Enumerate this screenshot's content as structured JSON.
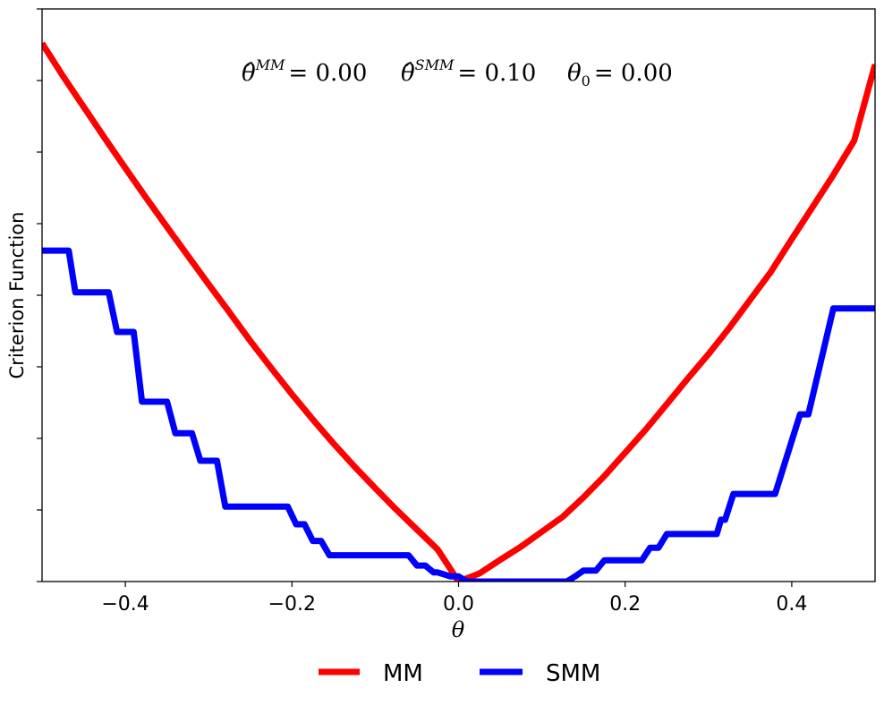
{
  "chart_data": {
    "type": "line",
    "title": "",
    "xlabel": "θ",
    "ylabel": "Criterion Function",
    "xlim": [
      -0.5,
      0.5
    ],
    "ylim": [
      0,
      1
    ],
    "x_ticks": [
      "−0.4",
      "−0.2",
      "0.0",
      "0.2",
      "0.4"
    ],
    "x_tick_values": [
      -0.4,
      -0.2,
      0.0,
      0.2,
      0.4
    ],
    "y_tick_values": [
      0,
      0.125,
      0.25,
      0.375,
      0.5,
      0.625,
      0.75,
      0.875,
      1.0
    ],
    "y_tick_labels_shown": false,
    "grid": false,
    "legend_placement": "bottom-center",
    "annotations": [
      {
        "symbol": "θ̂",
        "sup": "MM",
        "text": "= 0.00"
      },
      {
        "symbol": "θ̂",
        "sup": "SMM",
        "text": "= 0.10"
      },
      {
        "symbol": "θ",
        "sub": "0",
        "text": "= 0.00"
      }
    ],
    "series": [
      {
        "name": "MM",
        "color": "#ff0000",
        "x": [
          -0.5,
          -0.475,
          -0.45,
          -0.425,
          -0.4,
          -0.375,
          -0.35,
          -0.325,
          -0.3,
          -0.275,
          -0.25,
          -0.225,
          -0.2,
          -0.175,
          -0.15,
          -0.125,
          -0.1,
          -0.075,
          -0.05,
          -0.025,
          0.0,
          0.025,
          0.05,
          0.075,
          0.1,
          0.125,
          0.15,
          0.175,
          0.2,
          0.225,
          0.25,
          0.275,
          0.3,
          0.325,
          0.35,
          0.375,
          0.4,
          0.425,
          0.45,
          0.475,
          0.5
        ],
        "y": [
          0.94,
          0.883,
          0.829,
          0.775,
          0.722,
          0.67,
          0.619,
          0.569,
          0.519,
          0.47,
          0.42,
          0.373,
          0.327,
          0.283,
          0.241,
          0.201,
          0.163,
          0.126,
          0.091,
          0.056,
          0.0,
          0.014,
          0.038,
          0.061,
          0.087,
          0.113,
          0.147,
          0.184,
          0.225,
          0.266,
          0.31,
          0.354,
          0.397,
          0.443,
          0.492,
          0.541,
          0.598,
          0.654,
          0.71,
          0.77,
          0.903
        ]
      },
      {
        "name": "SMM",
        "color": "#0000ff",
        "x": [
          -0.5,
          -0.468,
          -0.46,
          -0.42,
          -0.41,
          -0.39,
          -0.38,
          -0.35,
          -0.34,
          -0.32,
          -0.31,
          -0.29,
          -0.28,
          -0.205,
          -0.195,
          -0.185,
          -0.175,
          -0.165,
          -0.155,
          -0.06,
          -0.05,
          -0.04,
          -0.03,
          -0.025,
          -0.01,
          0.0,
          0.01,
          0.13,
          0.14,
          0.15,
          0.165,
          0.175,
          0.22,
          0.23,
          0.24,
          0.25,
          0.255,
          0.31,
          0.315,
          0.32,
          0.33,
          0.335,
          0.38,
          0.41,
          0.42,
          0.45,
          0.5
        ],
        "y": [
          0.578,
          0.578,
          0.505,
          0.505,
          0.436,
          0.436,
          0.314,
          0.314,
          0.259,
          0.259,
          0.211,
          0.211,
          0.131,
          0.131,
          0.1,
          0.1,
          0.071,
          0.071,
          0.046,
          0.046,
          0.028,
          0.028,
          0.016,
          0.016,
          0.009,
          0.009,
          0.0,
          0.0,
          0.009,
          0.019,
          0.019,
          0.037,
          0.037,
          0.059,
          0.059,
          0.083,
          0.083,
          0.083,
          0.108,
          0.108,
          0.153,
          0.153,
          0.153,
          0.292,
          0.292,
          0.477,
          0.477
        ]
      }
    ]
  }
}
